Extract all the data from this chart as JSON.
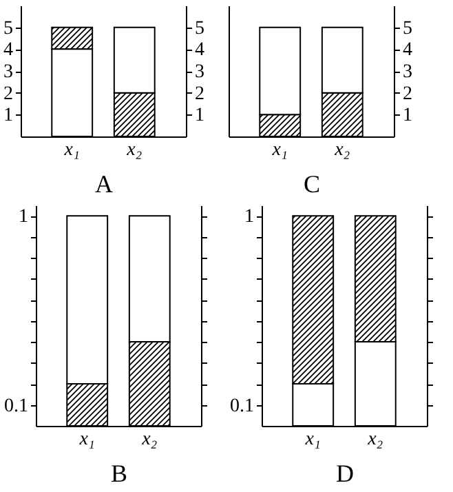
{
  "chart_data": [
    {
      "type": "bar",
      "xlabel": "A",
      "categories": [
        "x₁",
        "x₂"
      ],
      "series": [
        {
          "color": "#000000",
          "base": [
            4,
            0
          ],
          "values": [
            1,
            2
          ]
        },
        {
          "color": "#ffffff",
          "base": [
            0,
            2
          ],
          "values": [
            4,
            3
          ]
        }
      ],
      "ylim": [
        0,
        6
      ],
      "yticks": [
        1,
        2,
        3,
        4,
        5
      ],
      "y2lim": [
        0,
        6
      ],
      "y2ticks": [
        1,
        2,
        3,
        4,
        5
      ]
    },
    {
      "type": "bar",
      "xlabel": "C",
      "categories": [
        "x₁",
        "x₂"
      ],
      "series": [
        {
          "color": "#000000",
          "base": [
            0,
            0
          ],
          "values": [
            1,
            2
          ],
          "axis": "y2"
        },
        {
          "color": "#ffffff",
          "base": [
            1,
            2
          ],
          "values": [
            4,
            3
          ],
          "axis": "y2"
        }
      ],
      "y2lim": [
        0,
        6
      ],
      "y2ticks": [
        1,
        2,
        3,
        4,
        5
      ]
    },
    {
      "type": "bar",
      "xlabel": "B",
      "categories": [
        "x₁",
        "x₂"
      ],
      "series": [
        {
          "color": "#000000",
          "base": [
            0,
            0
          ],
          "values": [
            0.2,
            0.4
          ]
        },
        {
          "color": "#ffffff",
          "base": [
            0.2,
            0.4
          ],
          "values": [
            0.8,
            0.6
          ]
        }
      ],
      "ylim": [
        0,
        1.05
      ],
      "yticks": [
        0.1,
        {
          "value": 0.2,
          "label": null
        },
        {
          "value": 0.3,
          "label": null
        },
        {
          "value": 0.4,
          "label": null
        },
        {
          "value": 0.5,
          "label": null
        },
        {
          "value": 0.6,
          "label": null
        },
        {
          "value": 0.7,
          "label": null
        },
        {
          "value": 0.8,
          "label": null
        },
        {
          "value": 0.9,
          "label": null
        },
        1
      ]
    },
    {
      "type": "bar",
      "xlabel": "D",
      "categories": [
        "x₁",
        "x₂"
      ],
      "series": [
        {
          "color": "#ffffff",
          "base": [
            0,
            0
          ],
          "values": [
            0.2,
            0.4
          ]
        },
        {
          "color": "#000000",
          "base": [
            0.2,
            0.4
          ],
          "values": [
            0.8,
            0.6
          ]
        }
      ],
      "ylim": [
        0,
        1.05
      ],
      "yticks": [
        0.1,
        {
          "value": 0.2,
          "label": null
        },
        {
          "value": 0.3,
          "label": null
        },
        {
          "value": 0.4,
          "label": null
        },
        {
          "value": 0.5,
          "label": null
        },
        {
          "value": 0.6,
          "label": null
        },
        {
          "value": 0.7,
          "label": null
        },
        {
          "value": 0.8,
          "label": null
        },
        {
          "value": 0.9,
          "label": null
        },
        1
      ]
    }
  ]
}
